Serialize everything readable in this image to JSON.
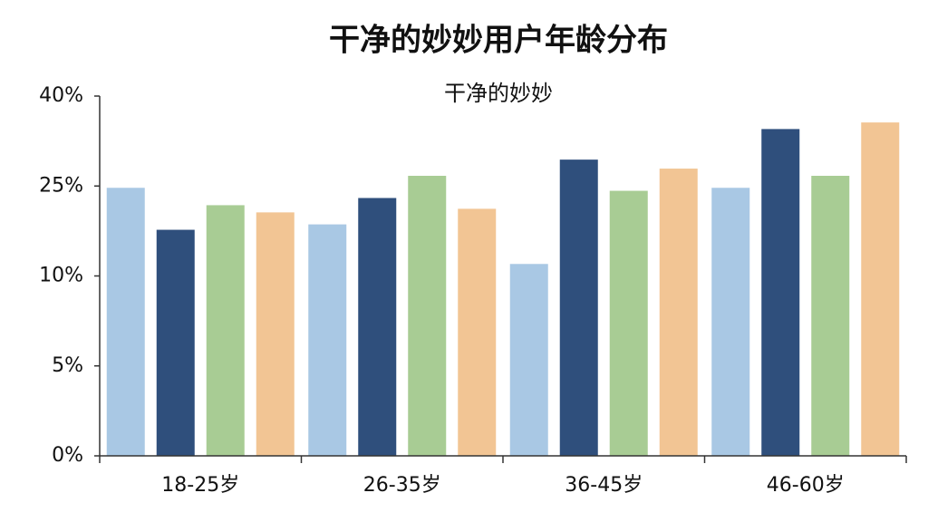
{
  "chart_data": {
    "type": "bar",
    "title": "干净的妙妙用户年龄分布",
    "subtitle": "干净的妙妙",
    "categories": [
      "18-25岁",
      "26-35岁",
      "36-45岁",
      "46-60岁"
    ],
    "series": [
      {
        "color": "#a9c8e4",
        "values": [
          24.7,
          18.6,
          12.0,
          24.7
        ]
      },
      {
        "color": "#2f4f7c",
        "values": [
          17.7,
          23.0,
          29.4,
          34.5
        ]
      },
      {
        "color": "#a8cc94",
        "values": [
          21.8,
          26.7,
          24.2,
          26.7
        ]
      },
      {
        "color": "#f2c594",
        "values": [
          20.6,
          21.2,
          27.9,
          35.6
        ]
      }
    ],
    "ylim": [
      0,
      40
    ],
    "yticks": [
      {
        "value": 0,
        "label": "0%"
      },
      {
        "value": 5,
        "label": "5%"
      },
      {
        "value": 10,
        "label": "10%"
      },
      {
        "value": 25,
        "label": "25%"
      },
      {
        "value": 40,
        "label": "40%"
      }
    ]
  }
}
